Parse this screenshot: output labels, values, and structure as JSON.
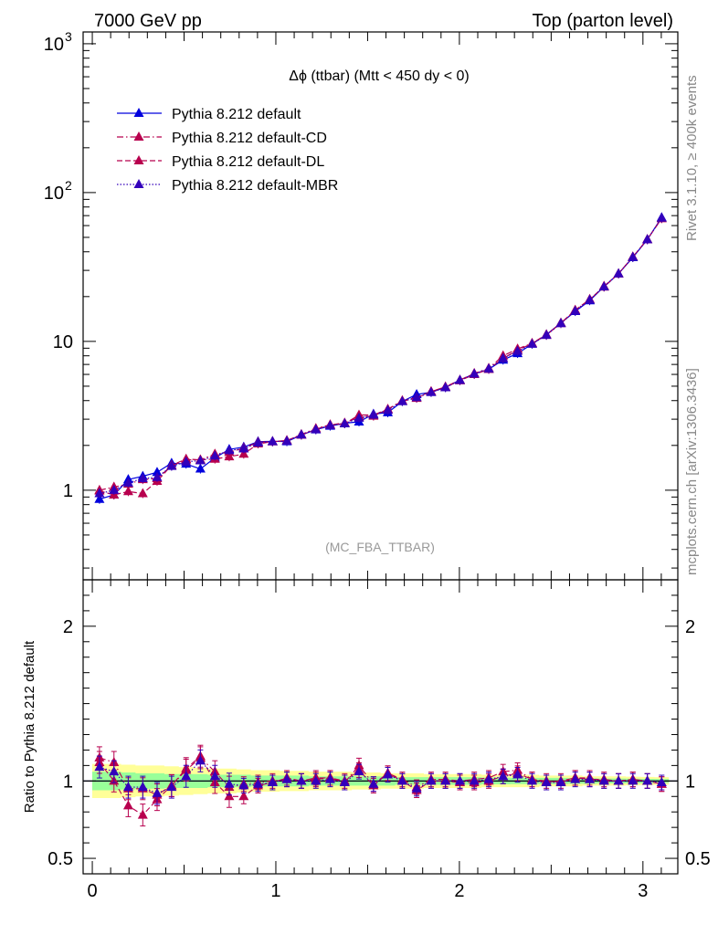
{
  "header": {
    "left": "7000 GeV pp",
    "right": "Top (parton level)"
  },
  "side_labels": {
    "rivet": "Rivet 3.1.10, ≥ 400k events",
    "mcplots": "mcplots.cern.ch [arXiv:1306.3436]"
  },
  "chart_data": [
    {
      "type": "line",
      "title": "Δϕ (ttbar) (Mtt < 450 dy < 0)",
      "watermark": "(MC_FBA_TTBAR)",
      "xlabel": "",
      "ylabel": "",
      "xlim": [
        -0.05,
        3.19
      ],
      "ylim": [
        0.25,
        1200
      ],
      "yscale": "log",
      "y_ticks": [
        {
          "value": 1,
          "label": "1"
        },
        {
          "value": 10,
          "label": "10"
        },
        {
          "value": 100,
          "label": "10",
          "exp": "2"
        },
        {
          "value": 1000,
          "label": "10",
          "exp": "3"
        }
      ],
      "legend_position": "top-left",
      "x": [
        0.039,
        0.118,
        0.196,
        0.275,
        0.353,
        0.432,
        0.511,
        0.589,
        0.668,
        0.746,
        0.825,
        0.903,
        0.982,
        1.06,
        1.139,
        1.218,
        1.296,
        1.375,
        1.453,
        1.532,
        1.61,
        1.689,
        1.767,
        1.846,
        1.924,
        2.003,
        2.081,
        2.16,
        2.238,
        2.317,
        2.396,
        2.474,
        2.553,
        2.631,
        2.71,
        2.788,
        2.867,
        2.945,
        3.024,
        3.102
      ],
      "series": [
        {
          "name": "Pythia 8.212 default",
          "color": "#0000dd",
          "dash": "solid",
          "values": [
            0.87,
            0.93,
            1.18,
            1.24,
            1.32,
            1.52,
            1.5,
            1.39,
            1.65,
            1.88,
            1.95,
            2.12,
            2.13,
            2.12,
            2.35,
            2.55,
            2.7,
            2.82,
            2.88,
            3.25,
            3.32,
            3.95,
            4.4,
            4.55,
            4.9,
            5.5,
            6.05,
            6.5,
            7.5,
            8.3,
            9.6,
            11.1,
            13.3,
            15.9,
            18.8,
            23.3,
            28.5,
            36.6,
            48.3,
            68.0
          ]
        },
        {
          "name": "Pythia 8.212 default-CD",
          "color": "#b8004e",
          "dash": "dashdot",
          "values": [
            1.0,
            1.05,
            1.1,
            1.18,
            1.2,
            1.46,
            1.6,
            1.6,
            1.75,
            1.8,
            1.92,
            2.1,
            2.12,
            2.15,
            2.37,
            2.6,
            2.75,
            2.8,
            3.2,
            3.2,
            3.5,
            4.0,
            4.2,
            4.6,
            4.95,
            5.5,
            6.1,
            6.6,
            8.0,
            8.9,
            9.7,
            11.0,
            13.3,
            16.2,
            19.0,
            23.5,
            28.5,
            37.0,
            48.5,
            67.0
          ]
        },
        {
          "name": "Pythia 8.212 default-DL",
          "color": "#b8004e",
          "dash": "dashed",
          "values": [
            0.99,
            0.93,
            0.98,
            0.95,
            1.15,
            1.47,
            1.62,
            1.6,
            1.62,
            1.68,
            1.75,
            2.05,
            2.12,
            2.16,
            2.35,
            2.57,
            2.75,
            2.83,
            3.1,
            3.15,
            3.5,
            3.97,
            4.15,
            4.6,
            4.92,
            5.45,
            6.0,
            6.5,
            7.7,
            8.7,
            9.7,
            11.1,
            13.2,
            16.2,
            19.2,
            23.2,
            28.5,
            37.0,
            48.3,
            67.0
          ]
        },
        {
          "name": "Pythia 8.212 default-MBR",
          "color": "#3300bb",
          "dash": "dotted",
          "values": [
            0.95,
            1.0,
            1.12,
            1.2,
            1.22,
            1.45,
            1.55,
            1.58,
            1.7,
            1.85,
            1.9,
            2.08,
            2.12,
            2.14,
            2.36,
            2.56,
            2.72,
            2.8,
            3.05,
            3.2,
            3.45,
            3.95,
            4.2,
            4.55,
            4.9,
            5.48,
            6.05,
            6.55,
            7.7,
            8.6,
            9.6,
            11.0,
            13.2,
            16.0,
            19.0,
            23.3,
            28.5,
            36.8,
            48.3,
            67.5
          ]
        }
      ]
    },
    {
      "type": "line",
      "title": "",
      "xlabel": "",
      "ylabel": "Ratio to Pythia 8.212 default",
      "xlim": [
        -0.05,
        3.19
      ],
      "ylim": [
        0.4,
        2.3
      ],
      "x_ticks": [
        0,
        1,
        2,
        3
      ],
      "y_ticks": [
        0.5,
        1,
        2
      ],
      "reference_line": 1,
      "band_inner_color": "#99ff99",
      "band_outer_color": "#ffff99",
      "band_inner_halfwidth": [
        0.06,
        0.06,
        0.055,
        0.05,
        0.05,
        0.045,
        0.045,
        0.045,
        0.04,
        0.04,
        0.04,
        0.035,
        0.035,
        0.035,
        0.035,
        0.03,
        0.03,
        0.03,
        0.03,
        0.03,
        0.03,
        0.025,
        0.025,
        0.025,
        0.025,
        0.025,
        0.025,
        0.022,
        0.022,
        0.02,
        0.02,
        0.02,
        0.02,
        0.018,
        0.018,
        0.016,
        0.016,
        0.015,
        0.014,
        0.013
      ],
      "band_outer_halfwidth": [
        0.11,
        0.11,
        0.105,
        0.1,
        0.1,
        0.095,
        0.09,
        0.085,
        0.08,
        0.08,
        0.075,
        0.07,
        0.07,
        0.065,
        0.065,
        0.06,
        0.06,
        0.06,
        0.055,
        0.055,
        0.05,
        0.05,
        0.05,
        0.045,
        0.045,
        0.045,
        0.045,
        0.04,
        0.04,
        0.04,
        0.04,
        0.035,
        0.035,
        0.035,
        0.03,
        0.03,
        0.03,
        0.028,
        0.026,
        0.025
      ],
      "series": [
        {
          "name": "Pythia 8.212 default-CD",
          "color": "#b8004e",
          "dash": "dashdot",
          "values": [
            1.15,
            1.12,
            0.95,
            0.95,
            0.91,
            0.97,
            1.07,
            1.15,
            1.06,
            0.96,
            0.98,
            0.99,
            1.0,
            1.01,
            1.0,
            1.02,
            1.02,
            0.99,
            1.1,
            0.98,
            1.05,
            1.01,
            0.96,
            1.01,
            1.01,
            1.0,
            1.01,
            1.02,
            1.06,
            1.07,
            1.01,
            0.99,
            1.0,
            1.02,
            1.01,
            1.01,
            1.0,
            1.01,
            1.0,
            0.98
          ]
        },
        {
          "name": "Pythia 8.212 default-DL",
          "color": "#b8004e",
          "dash": "dashed",
          "values": [
            1.12,
            1.0,
            0.84,
            0.78,
            0.88,
            0.97,
            1.08,
            1.16,
            0.99,
            0.9,
            0.9,
            0.97,
            0.99,
            1.02,
            1.0,
            1.01,
            1.02,
            1.0,
            1.07,
            0.97,
            1.05,
            1.0,
            0.94,
            1.0,
            1.0,
            0.99,
            0.99,
            1.0,
            1.03,
            1.05,
            1.01,
            1.0,
            0.99,
            1.02,
            1.02,
            1.0,
            1.0,
            1.01,
            1.0,
            0.98
          ]
        },
        {
          "name": "Pythia 8.212 default-MBR",
          "color": "#3300bb",
          "dash": "dotted",
          "values": [
            1.09,
            1.06,
            0.96,
            0.96,
            0.92,
            0.96,
            1.03,
            1.13,
            1.03,
            0.98,
            0.97,
            0.98,
            0.99,
            1.01,
            1.0,
            1.0,
            1.01,
            0.99,
            1.06,
            0.98,
            1.04,
            1.0,
            0.95,
            1.0,
            1.0,
            1.0,
            1.0,
            1.01,
            1.03,
            1.04,
            1.0,
            0.99,
            0.99,
            1.01,
            1.01,
            1.0,
            1.0,
            1.0,
            1.0,
            0.99
          ]
        }
      ]
    }
  ]
}
